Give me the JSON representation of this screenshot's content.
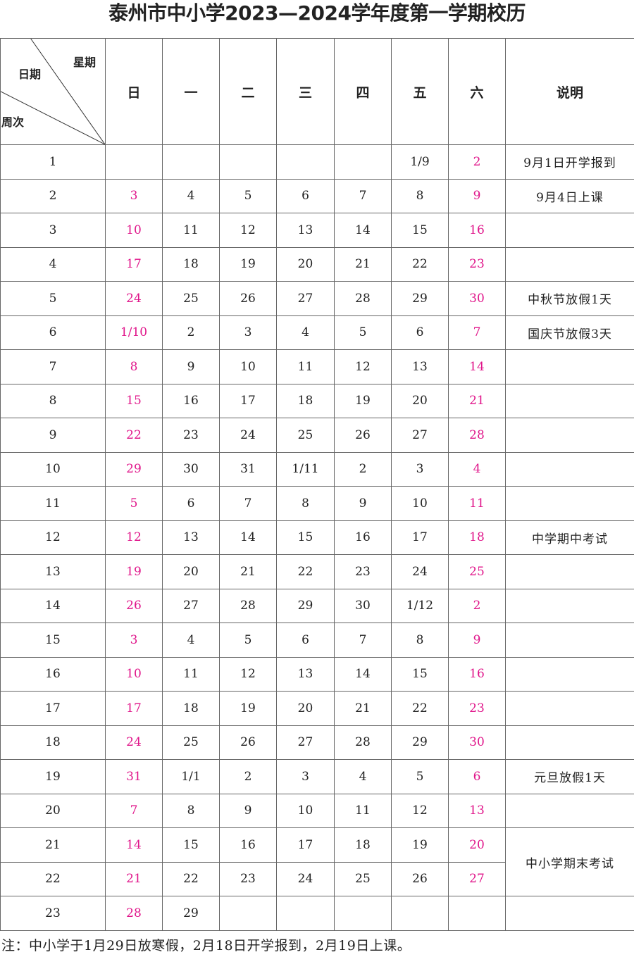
{
  "title": "泰州市中小学2023—2024学年度第一学期校历",
  "header": {
    "corner_top": "星期",
    "corner_mid": "日期",
    "corner_bottom": "周次",
    "days": [
      "日",
      "一",
      "二",
      "三",
      "四",
      "五",
      "六"
    ],
    "note": "说明"
  },
  "colors": {
    "weekend": "#e0158a",
    "text": "#222222",
    "border": "#666666"
  },
  "rows": [
    {
      "week": "1",
      "days": [
        "",
        "",
        "",
        "",
        "",
        "1/9",
        "2"
      ],
      "note": "9月1日开学报到"
    },
    {
      "week": "2",
      "days": [
        "3",
        "4",
        "5",
        "6",
        "7",
        "8",
        "9"
      ],
      "note": "9月4日上课"
    },
    {
      "week": "3",
      "days": [
        "10",
        "11",
        "12",
        "13",
        "14",
        "15",
        "16"
      ],
      "note": ""
    },
    {
      "week": "4",
      "days": [
        "17",
        "18",
        "19",
        "20",
        "21",
        "22",
        "23"
      ],
      "note": ""
    },
    {
      "week": "5",
      "days": [
        "24",
        "25",
        "26",
        "27",
        "28",
        "29",
        "30"
      ],
      "note": "中秋节放假1天"
    },
    {
      "week": "6",
      "days": [
        "1/10",
        "2",
        "3",
        "4",
        "5",
        "6",
        "7"
      ],
      "note": "国庆节放假3天"
    },
    {
      "week": "7",
      "days": [
        "8",
        "9",
        "10",
        "11",
        "12",
        "13",
        "14"
      ],
      "note": ""
    },
    {
      "week": "8",
      "days": [
        "15",
        "16",
        "17",
        "18",
        "19",
        "20",
        "21"
      ],
      "note": ""
    },
    {
      "week": "9",
      "days": [
        "22",
        "23",
        "24",
        "25",
        "26",
        "27",
        "28"
      ],
      "note": ""
    },
    {
      "week": "10",
      "days": [
        "29",
        "30",
        "31",
        "1/11",
        "2",
        "3",
        "4"
      ],
      "note": ""
    },
    {
      "week": "11",
      "days": [
        "5",
        "6",
        "7",
        "8",
        "9",
        "10",
        "11"
      ],
      "note": ""
    },
    {
      "week": "12",
      "days": [
        "12",
        "13",
        "14",
        "15",
        "16",
        "17",
        "18"
      ],
      "note": "中学期中考试"
    },
    {
      "week": "13",
      "days": [
        "19",
        "20",
        "21",
        "22",
        "23",
        "24",
        "25"
      ],
      "note": ""
    },
    {
      "week": "14",
      "days": [
        "26",
        "27",
        "28",
        "29",
        "30",
        "1/12",
        "2"
      ],
      "note": ""
    },
    {
      "week": "15",
      "days": [
        "3",
        "4",
        "5",
        "6",
        "7",
        "8",
        "9"
      ],
      "note": ""
    },
    {
      "week": "16",
      "days": [
        "10",
        "11",
        "12",
        "13",
        "14",
        "15",
        "16"
      ],
      "note": ""
    },
    {
      "week": "17",
      "days": [
        "17",
        "18",
        "19",
        "20",
        "21",
        "22",
        "23"
      ],
      "note": ""
    },
    {
      "week": "18",
      "days": [
        "24",
        "25",
        "26",
        "27",
        "28",
        "29",
        "30"
      ],
      "note": ""
    },
    {
      "week": "19",
      "days": [
        "31",
        "1/1",
        "2",
        "3",
        "4",
        "5",
        "6"
      ],
      "note": "元旦放假1天"
    },
    {
      "week": "20",
      "days": [
        "7",
        "8",
        "9",
        "10",
        "11",
        "12",
        "13"
      ],
      "note": ""
    },
    {
      "week": "21",
      "days": [
        "14",
        "15",
        "16",
        "17",
        "18",
        "19",
        "20"
      ],
      "note": "中小学期末考试",
      "note_rows": 2
    },
    {
      "week": "22",
      "days": [
        "21",
        "22",
        "23",
        "24",
        "25",
        "26",
        "27"
      ],
      "note": null
    },
    {
      "week": "23",
      "days": [
        "28",
        "29",
        "",
        "",
        "",
        "",
        ""
      ],
      "note": ""
    }
  ],
  "footnote": "注：中小学于1月29日放寒假，2月18日开学报到，2月19日上课。"
}
